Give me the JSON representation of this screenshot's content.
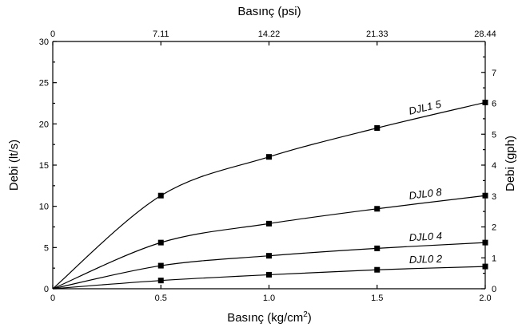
{
  "chart_data": {
    "type": "line",
    "xlabel": "Basınç (kg/cm²)",
    "xlabel_main": "Basınç (kg/cm",
    "xlabel_sup": "2",
    "xlabel_end": ")",
    "x2label": "Basınç (psi)",
    "ylabel": "Debi (lt/s)",
    "y2label": "Debi (gph)",
    "x": [
      0,
      0.5,
      1.0,
      1.5,
      2.0
    ],
    "xlim": [
      0,
      2.0
    ],
    "ylim": [
      0,
      30
    ],
    "y2lim": [
      0,
      8
    ],
    "x_ticks": [
      "0",
      "0.5",
      "1.0",
      "1.5",
      "2.0"
    ],
    "y_ticks": [
      "0",
      "5",
      "10",
      "15",
      "20",
      "25",
      "30"
    ],
    "x2_ticks": [
      "0",
      "7.11",
      "14.22",
      "21.33",
      "28.44"
    ],
    "y2_ticks": [
      "0",
      "1",
      "2",
      "3",
      "4",
      "5",
      "6",
      "7"
    ],
    "grid": false,
    "series": [
      {
        "name": "DJL1 5",
        "values": [
          0,
          11.3,
          16.0,
          19.5,
          22.6
        ]
      },
      {
        "name": "DJL0 8",
        "values": [
          0,
          5.6,
          7.9,
          9.7,
          11.3
        ]
      },
      {
        "name": "DJL0 4",
        "values": [
          0,
          2.8,
          4.0,
          4.9,
          5.6
        ]
      },
      {
        "name": "DJL0 2",
        "values": [
          0,
          1.0,
          1.7,
          2.3,
          2.7
        ]
      }
    ]
  }
}
